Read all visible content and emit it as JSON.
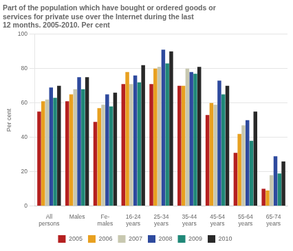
{
  "chart_data": {
    "type": "bar",
    "title": "Part of the population which have bought or ordered goods or\nservices for private use over the Internet during the last\n12 months. 2005-2010. Per cent",
    "y_label": "Per cent",
    "categories": [
      "All\npersons",
      "Males",
      "Fe-\nmales",
      "16-24\nyears",
      "25-34\nyears",
      "35-44\nyears",
      "45-54\nyears",
      "55-64\nyears",
      "65-74\nyears"
    ],
    "series": [
      {
        "name": "2005",
        "color": "#b52020",
        "values": [
          55,
          61,
          49,
          71,
          71,
          70,
          53,
          31,
          10
        ]
      },
      {
        "name": "2006",
        "color": "#e8a020",
        "values": [
          61,
          65,
          57,
          78,
          80,
          70,
          60,
          42,
          9
        ]
      },
      {
        "name": "2007",
        "color": "#c8c8b0",
        "values": [
          62,
          68,
          59,
          71,
          81,
          80,
          59,
          47,
          18
        ]
      },
      {
        "name": "2008",
        "color": "#2e4a9e",
        "values": [
          69,
          75,
          65,
          76,
          91,
          78,
          73,
          50,
          29
        ]
      },
      {
        "name": "2009",
        "color": "#208878",
        "values": [
          63,
          68,
          58,
          72,
          83,
          77,
          65,
          38,
          19
        ]
      },
      {
        "name": "2010",
        "color": "#282828",
        "values": [
          70,
          75,
          66,
          82,
          90,
          81,
          70,
          55,
          26
        ]
      }
    ],
    "ylim": [
      0,
      100
    ],
    "yticks": [
      0,
      20,
      40,
      60,
      80,
      100
    ],
    "grid": true,
    "legend": "bottom"
  }
}
